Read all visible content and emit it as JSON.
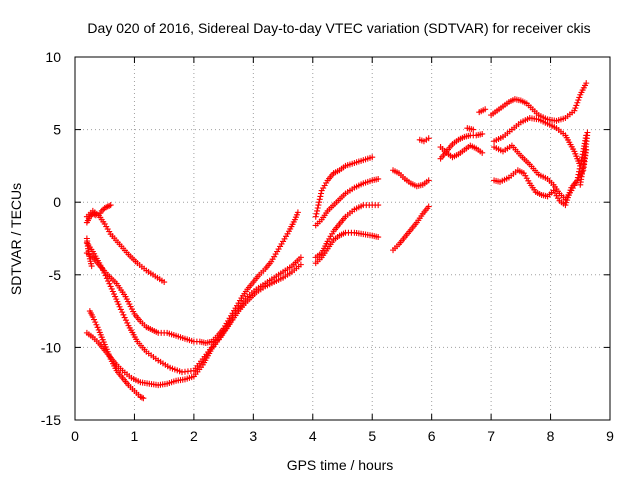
{
  "chart_data": {
    "type": "scatter",
    "title": "Day 020 of 2016, Sidereal Day-to-day VTEC variation (SDTVAR) for receiver ckis",
    "xlabel": "GPS time / hours",
    "ylabel": "SDTVAR / TECUs",
    "xlim": [
      0,
      9
    ],
    "ylim": [
      -15,
      10
    ],
    "xticks": [
      "0",
      "1",
      "2",
      "3",
      "4",
      "5",
      "6",
      "7",
      "8",
      "9"
    ],
    "yticks": [
      "-15",
      "-10",
      "-5",
      "0",
      "5",
      "10"
    ],
    "grid": true,
    "marker": "+",
    "color": "#ff0000",
    "series": [
      {
        "x": [
          0.2,
          0.3,
          0.4,
          0.55,
          0.7,
          0.85,
          1.0,
          1.1,
          1.2,
          1.3,
          1.4,
          1.55,
          1.7,
          1.85,
          2.0,
          2.1,
          2.2,
          2.3,
          2.4,
          2.5,
          2.6,
          2.7,
          2.8,
          2.9,
          3.0,
          3.1,
          3.2,
          3.3,
          3.4,
          3.5,
          3.6,
          3.7,
          3.75
        ],
        "y": [
          -3.5,
          -3.8,
          -4.3,
          -5.0,
          -5.6,
          -6.5,
          -7.7,
          -8.2,
          -8.6,
          -8.8,
          -9.0,
          -9.0,
          -9.2,
          -9.4,
          -9.6,
          -9.6,
          -9.7,
          -9.6,
          -9.2,
          -8.7,
          -8.0,
          -7.3,
          -6.6,
          -6.0,
          -5.5,
          -5.0,
          -4.6,
          -4.1,
          -3.4,
          -2.7,
          -2.0,
          -1.2,
          -0.7
        ]
      },
      {
        "x": [
          0.2,
          0.3,
          0.45,
          0.6,
          0.75,
          0.9,
          1.05,
          1.2,
          1.4,
          1.6,
          1.8,
          2.0,
          2.15,
          2.3,
          2.45,
          2.6,
          2.75,
          2.9,
          3.05,
          3.2,
          3.35,
          3.5,
          3.65,
          3.8
        ],
        "y": [
          -2.8,
          -3.4,
          -4.5,
          -5.8,
          -7.2,
          -8.5,
          -9.6,
          -10.3,
          -10.9,
          -11.4,
          -11.7,
          -11.6,
          -10.8,
          -10.0,
          -9.2,
          -8.3,
          -7.3,
          -6.5,
          -6.0,
          -5.6,
          -5.2,
          -4.8,
          -4.4,
          -3.8
        ]
      },
      {
        "x": [
          0.2,
          0.3,
          0.4,
          0.5,
          0.6,
          0.7,
          0.8,
          0.95,
          1.1,
          1.25,
          1.4,
          1.55,
          1.7,
          1.85,
          2.0,
          2.15,
          2.3,
          2.45,
          2.6,
          2.75,
          2.9,
          3.05,
          3.2,
          3.35,
          3.5,
          3.65,
          3.8
        ],
        "y": [
          -9.0,
          -9.3,
          -9.7,
          -10.2,
          -10.7,
          -11.2,
          -11.6,
          -12.1,
          -12.4,
          -12.5,
          -12.6,
          -12.5,
          -12.3,
          -12.2,
          -12.0,
          -11.2,
          -10.1,
          -9.3,
          -8.4,
          -7.5,
          -6.8,
          -6.2,
          -5.8,
          -5.5,
          -5.2,
          -4.8,
          -4.3
        ]
      },
      {
        "x": [
          0.25,
          0.3,
          0.4,
          0.5,
          0.6,
          0.7,
          0.8,
          0.9,
          1.0,
          1.1,
          1.15
        ],
        "y": [
          -7.5,
          -7.9,
          -8.8,
          -9.8,
          -10.8,
          -11.6,
          -12.1,
          -12.6,
          -13.0,
          -13.4,
          -13.5
        ]
      },
      {
        "x": [
          0.2,
          0.3,
          0.4,
          0.5,
          0.6,
          0.75,
          0.9,
          1.05,
          1.2,
          1.35,
          1.5
        ],
        "y": [
          -1.0,
          -0.6,
          -0.9,
          -1.5,
          -2.2,
          -2.9,
          -3.6,
          -4.2,
          -4.7,
          -5.1,
          -5.5
        ]
      },
      {
        "x": [
          0.2,
          0.25,
          0.3,
          0.35,
          0.4,
          0.45,
          0.5,
          0.55,
          0.6
        ],
        "y": [
          -1.4,
          -1.0,
          -0.8,
          -0.9,
          -0.9,
          -0.6,
          -0.4,
          -0.3,
          -0.2
        ]
      },
      {
        "x": [
          0.2,
          0.22,
          0.25,
          0.28
        ],
        "y": [
          -2.5,
          -3.2,
          -3.9,
          -4.4
        ]
      },
      {
        "x": [
          4.05,
          4.15,
          4.25,
          4.35,
          4.45,
          4.55,
          4.7,
          4.85,
          5.0
        ],
        "y": [
          -1.0,
          0.8,
          1.5,
          2.0,
          2.2,
          2.5,
          2.7,
          2.9,
          3.1
        ]
      },
      {
        "x": [
          4.05,
          4.15,
          4.25,
          4.4,
          4.55,
          4.7,
          4.85,
          5.0,
          5.1
        ],
        "y": [
          -1.6,
          -1.2,
          -0.6,
          0.0,
          0.6,
          1.0,
          1.3,
          1.5,
          1.6
        ]
      },
      {
        "x": [
          4.05,
          4.15,
          4.25,
          4.35,
          4.45,
          4.55,
          4.7,
          4.85,
          5.0,
          5.1
        ],
        "y": [
          -3.8,
          -3.5,
          -2.7,
          -2.0,
          -1.5,
          -1.0,
          -0.5,
          -0.2,
          -0.2,
          -0.2
        ]
      },
      {
        "x": [
          4.05,
          4.15,
          4.25,
          4.35,
          4.45,
          4.55,
          4.7,
          4.85,
          5.0,
          5.1
        ],
        "y": [
          -4.2,
          -3.8,
          -3.2,
          -2.6,
          -2.3,
          -2.1,
          -2.1,
          -2.2,
          -2.3,
          -2.4
        ]
      },
      {
        "x": [
          5.35,
          5.45,
          5.55,
          5.65,
          5.75,
          5.85,
          5.95
        ],
        "y": [
          2.2,
          2.0,
          1.6,
          1.3,
          1.1,
          1.2,
          1.5
        ]
      },
      {
        "x": [
          5.35,
          5.45,
          5.55,
          5.65,
          5.75,
          5.85,
          5.95
        ],
        "y": [
          -3.3,
          -2.9,
          -2.4,
          -1.9,
          -1.4,
          -0.8,
          -0.3
        ]
      },
      {
        "x": [
          5.8,
          5.87,
          5.95
        ],
        "y": [
          4.3,
          4.2,
          4.4
        ]
      },
      {
        "x": [
          6.15,
          6.25,
          6.35,
          6.45,
          6.55,
          6.65,
          6.75,
          6.85
        ],
        "y": [
          3.0,
          3.5,
          4.0,
          4.3,
          4.5,
          4.6,
          4.6,
          4.7
        ]
      },
      {
        "x": [
          6.15,
          6.25,
          6.35,
          6.45,
          6.55,
          6.65,
          6.75,
          6.85
        ],
        "y": [
          3.8,
          3.4,
          3.1,
          3.3,
          3.6,
          3.9,
          3.7,
          3.4
        ]
      },
      {
        "x": [
          6.6,
          6.7
        ],
        "y": [
          5.1,
          5.0
        ]
      },
      {
        "x": [
          6.8,
          6.9
        ],
        "y": [
          6.2,
          6.4
        ]
      },
      {
        "x": [
          7.0,
          7.1,
          7.2,
          7.3,
          7.4,
          7.5,
          7.6,
          7.7,
          7.8,
          7.95,
          8.1,
          8.25,
          8.4,
          8.5,
          8.6
        ],
        "y": [
          6.0,
          6.3,
          6.6,
          6.9,
          7.1,
          7.0,
          6.8,
          6.4,
          6.0,
          5.7,
          5.6,
          5.8,
          6.3,
          7.4,
          8.2
        ]
      },
      {
        "x": [
          7.05,
          7.2,
          7.35,
          7.5,
          7.65,
          7.8,
          7.95,
          8.1,
          8.25,
          8.4,
          8.5
        ],
        "y": [
          4.2,
          4.5,
          5.0,
          5.5,
          5.8,
          5.7,
          5.4,
          5.1,
          4.6,
          3.5,
          2.5
        ]
      },
      {
        "x": [
          7.05,
          7.2,
          7.35,
          7.5,
          7.65,
          7.8,
          7.95,
          8.05,
          8.15,
          8.25,
          8.35,
          8.45,
          8.55,
          8.6
        ],
        "y": [
          3.8,
          3.5,
          3.9,
          3.2,
          2.6,
          1.9,
          1.6,
          1.2,
          0.6,
          0.2,
          0.8,
          1.5,
          3.5,
          4.6
        ]
      },
      {
        "x": [
          7.05,
          7.15,
          7.3,
          7.45,
          7.55,
          7.65,
          7.75,
          7.85,
          7.95,
          8.05,
          8.15,
          8.25,
          8.35,
          8.45,
          8.55,
          8.6
        ],
        "y": [
          1.5,
          1.4,
          1.7,
          2.2,
          2.0,
          1.3,
          0.7,
          0.5,
          0.4,
          0.8,
          0.1,
          -0.2,
          1.0,
          1.5,
          2.2,
          3.6
        ]
      },
      {
        "x": [
          8.5,
          8.55,
          8.6,
          8.62
        ],
        "y": [
          1.2,
          2.5,
          4.0,
          4.8
        ]
      }
    ]
  }
}
